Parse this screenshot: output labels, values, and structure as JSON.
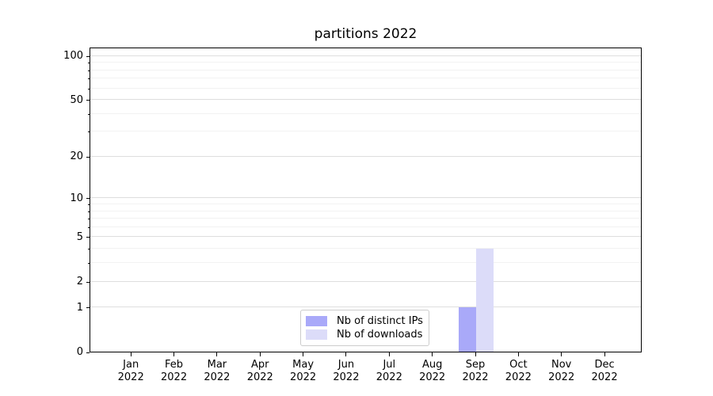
{
  "chart_data": {
    "type": "bar",
    "title": "partitions 2022",
    "categories": [
      "Jan",
      "Feb",
      "Mar",
      "Apr",
      "May",
      "Jun",
      "Jul",
      "Aug",
      "Sep",
      "Oct",
      "Nov",
      "Dec"
    ],
    "category_year": "2022",
    "series": [
      {
        "name": "Nb of distinct IPs",
        "color": "#a9a9f9",
        "values": [
          0,
          0,
          0,
          0,
          0,
          0,
          0,
          0,
          1,
          0,
          0,
          0
        ]
      },
      {
        "name": "Nb of downloads",
        "color": "#dcdcf9",
        "values": [
          0,
          0,
          0,
          0,
          0,
          0,
          0,
          0,
          4,
          0,
          0,
          0
        ]
      }
    ],
    "xlabel": "",
    "ylabel": "",
    "yscale": "log1p",
    "ylim": [
      0,
      115
    ],
    "yticks": [
      0,
      1,
      2,
      5,
      10,
      20,
      50,
      100
    ],
    "yticks_minor": [
      3,
      4,
      6,
      7,
      8,
      9,
      30,
      40,
      60,
      70,
      80,
      90
    ],
    "grid": "horizontal-major-and-minor",
    "legend_position": "inside-bottom-center",
    "colors": {
      "grid_major": "#dedede",
      "grid_minor": "#f2f2f2",
      "spine": "#000000",
      "text": "#000000",
      "background": "#ffffff",
      "legend_border": "#cccccc"
    }
  }
}
